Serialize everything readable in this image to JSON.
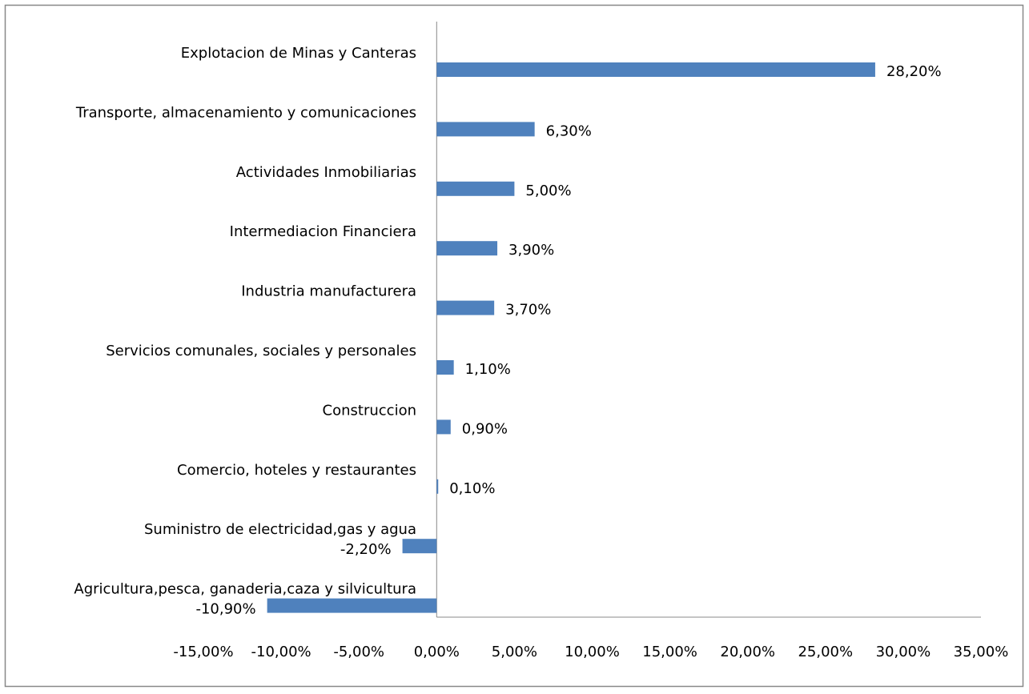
{
  "chart_data": {
    "type": "bar",
    "orientation": "horizontal",
    "color": "#4f81bd",
    "grid": false,
    "categories": [
      "Explotacion de Minas y Canteras",
      "Transporte, almacenamiento y comunicaciones",
      "Actividades Inmobiliarias",
      "Intermediacion Financiera",
      "Industria manufacturera",
      "Servicios comunales, sociales y personales",
      "Construccion",
      "Comercio, hoteles y restaurantes",
      "Suministro de electricidad,gas y agua",
      "Agricultura,pesca, ganaderia,caza y silvicultura"
    ],
    "values": [
      28.2,
      6.3,
      5.0,
      3.9,
      3.7,
      1.1,
      0.9,
      0.1,
      -2.2,
      -10.9
    ],
    "value_labels": [
      "28,20%",
      "6,30%",
      "5,00%",
      "3,90%",
      "3,70%",
      "1,10%",
      "0,90%",
      "0,10%",
      "-2,20%",
      "-10,90%"
    ],
    "xlim": [
      -15,
      35
    ],
    "xticks": [
      {
        "value": -15,
        "label": "-15,00%"
      },
      {
        "value": -10,
        "label": "-10,00%"
      },
      {
        "value": -5,
        "label": "-5,00%"
      },
      {
        "value": 0,
        "label": "0,00%"
      },
      {
        "value": 5,
        "label": "5,00%"
      },
      {
        "value": 10,
        "label": "10,00%"
      },
      {
        "value": 15,
        "label": "15,00%"
      },
      {
        "value": 20,
        "label": "20,00%"
      },
      {
        "value": 25,
        "label": "25,00%"
      },
      {
        "value": 30,
        "label": "30,00%"
      },
      {
        "value": 35,
        "label": "35,00%"
      }
    ]
  }
}
